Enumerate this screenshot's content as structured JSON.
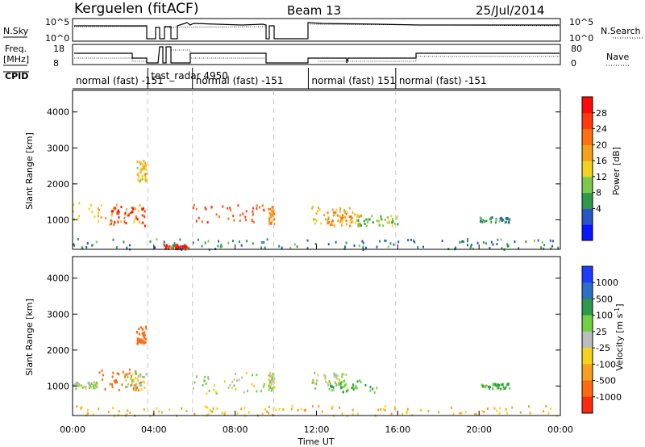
{
  "header": {
    "station": "Kerguelen (fitACF)",
    "beam": "Beam 13",
    "date": "25/Jul/2014"
  },
  "top_panels": {
    "nsky_label": "N.Sky",
    "nsky_ticks": [
      "10^5",
      "10^0"
    ],
    "nsearch_label": "N.Search",
    "nsearch_ticks": [
      "10^5",
      "10^0"
    ],
    "freq_label": [
      "Freq.",
      "[MHz]"
    ],
    "freq_ticks": [
      "18",
      "8"
    ],
    "nave_label": "Nave",
    "nave_ticks": [
      "80",
      "0"
    ],
    "cpid_label": "CPID",
    "cpid_segments": [
      {
        "label": "normal (fast) -151",
        "start_h": 0.0,
        "end_h": 3.7
      },
      {
        "label": "test_radar 4950",
        "start_h": 3.7,
        "end_h": 5.9
      },
      {
        "label": "normal (fast) -151",
        "start_h": 5.9,
        "end_h": 9.9
      },
      {
        "label": "normal (fast) 151",
        "start_h": 11.6,
        "end_h": 15.9
      },
      {
        "label": "normal (fast) -151",
        "start_h": 15.9,
        "end_h": 24.0
      }
    ]
  },
  "power_colorbar": {
    "label": "Power [dB]",
    "ticks": [
      "28",
      "24",
      "20",
      "16",
      "12",
      "8",
      "4"
    ],
    "colors": [
      "#0a14ff",
      "#2a55c8",
      "#2c9a48",
      "#7cc84e",
      "#f2d21c",
      "#f6a01e",
      "#ff7010",
      "#ff3a10",
      "#ff0a0a"
    ]
  },
  "velocity_colorbar": {
    "label": "Velocity [m s^-1]",
    "ticks": [
      "1000",
      "500",
      "100",
      "25",
      "-25",
      "-100",
      "-500",
      "-1000"
    ],
    "colors": [
      "#1e3cff",
      "#2c70c8",
      "#2c9a48",
      "#70d040",
      "#bcbcbc",
      "#f6d21c",
      "#f6a01e",
      "#ff6a10",
      "#ff2a10"
    ]
  },
  "chart_data": [
    {
      "type": "heatmap",
      "title": "Power",
      "ylabel": "Slant Range [km]",
      "xlabel": "Time UT",
      "x_ticks": [
        "00:00",
        "04:00",
        "08:00",
        "12:00",
        "16:00",
        "20:00",
        "00:00"
      ],
      "y_ticks": [
        "1000",
        "2000",
        "3000",
        "4000"
      ],
      "xlim": [
        0,
        24
      ],
      "ylim": [
        180,
        4600
      ],
      "scatter_regions": [
        {
          "t0": 0.0,
          "t1": 3.7,
          "r0": 900,
          "r1": 1500,
          "value": 16
        },
        {
          "t0": 1.8,
          "t1": 3.6,
          "r0": 850,
          "r1": 1400,
          "value": 26
        },
        {
          "t0": 3.1,
          "t1": 3.6,
          "r0": 2100,
          "r1": 2700,
          "value": 16
        },
        {
          "t0": 5.9,
          "t1": 9.5,
          "r0": 950,
          "r1": 1450,
          "value": 24
        },
        {
          "t0": 9.6,
          "t1": 9.9,
          "r0": 900,
          "r1": 1400,
          "value": 20
        },
        {
          "t0": 11.7,
          "t1": 14.0,
          "r0": 900,
          "r1": 1400,
          "value": 16
        },
        {
          "t0": 12.5,
          "t1": 14.2,
          "r0": 850,
          "r1": 1250,
          "value": 20
        },
        {
          "t0": 14.0,
          "t1": 16.0,
          "r0": 850,
          "r1": 1150,
          "value": 12
        },
        {
          "t0": 20.0,
          "t1": 21.5,
          "r0": 950,
          "r1": 1100,
          "value": 8
        },
        {
          "t0": 4.4,
          "t1": 5.7,
          "r0": 220,
          "r1": 340,
          "value": 28
        },
        {
          "t0": 0.0,
          "t1": 24.0,
          "r0": 200,
          "r1": 500,
          "value": 8
        }
      ]
    },
    {
      "type": "heatmap",
      "title": "Velocity",
      "ylabel": "Slant Range [km]",
      "xlabel": "Time UT",
      "x_ticks": [
        "00:00",
        "04:00",
        "08:00",
        "12:00",
        "16:00",
        "20:00",
        "00:00"
      ],
      "y_ticks": [
        "1000",
        "2000",
        "3000",
        "4000"
      ],
      "xlim": [
        0,
        24
      ],
      "ylim": [
        180,
        4600
      ],
      "scatter_regions": [
        {
          "t0": 0.0,
          "t1": 1.2,
          "r0": 950,
          "r1": 1150,
          "value": 0
        },
        {
          "t0": 1.2,
          "t1": 3.4,
          "r0": 900,
          "r1": 1500,
          "value": -300
        },
        {
          "t0": 2.5,
          "t1": 3.6,
          "r0": 900,
          "r1": 1400,
          "value": 0
        },
        {
          "t0": 3.1,
          "t1": 3.6,
          "r0": 2200,
          "r1": 2700,
          "value": -500
        },
        {
          "t0": 5.9,
          "t1": 9.5,
          "r0": 800,
          "r1": 1400,
          "value": 0
        },
        {
          "t0": 9.6,
          "t1": 9.9,
          "r0": 900,
          "r1": 1400,
          "value": 0
        },
        {
          "t0": 11.7,
          "t1": 13.5,
          "r0": 900,
          "r1": 1400,
          "value": 0
        },
        {
          "t0": 12.5,
          "t1": 15.0,
          "r0": 850,
          "r1": 1200,
          "value": 60
        },
        {
          "t0": 20.0,
          "t1": 21.5,
          "r0": 950,
          "r1": 1100,
          "value": 60
        },
        {
          "t0": 0.0,
          "t1": 24.0,
          "r0": 200,
          "r1": 480,
          "value": -60
        }
      ]
    }
  ]
}
